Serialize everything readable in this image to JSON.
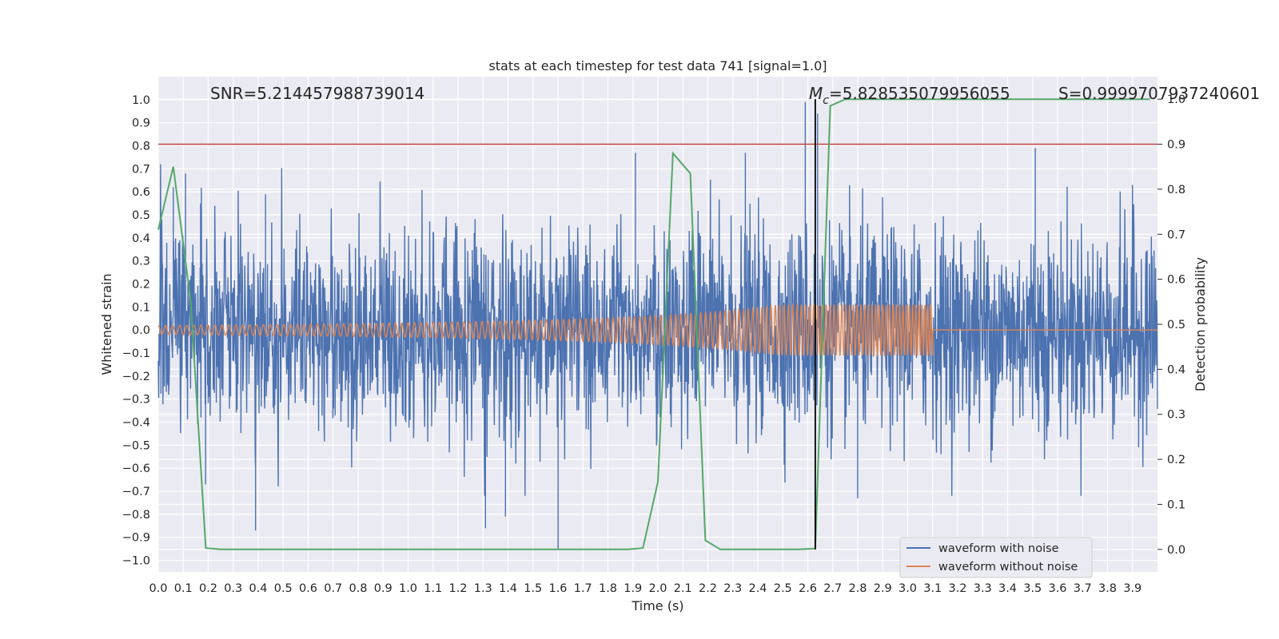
{
  "chart_data": {
    "type": "line",
    "title": "stats at each timestep for test data 741 [signal=1.0]",
    "xlabel": "Time (s)",
    "ylabel": "Whitened strain",
    "y2label": "Detection probability",
    "xlim": [
      0.0,
      4.0
    ],
    "ylim": [
      -1.05,
      1.1
    ],
    "y2lim": [
      -0.05,
      1.05
    ],
    "x_ticks": [
      "0.0",
      "0.1",
      "0.2",
      "0.3",
      "0.4",
      "0.5",
      "0.6",
      "0.7",
      "0.8",
      "0.9",
      "1.0",
      "1.1",
      "1.2",
      "1.3",
      "1.4",
      "1.5",
      "1.6",
      "1.7",
      "1.8",
      "1.9",
      "2.0",
      "2.1",
      "2.2",
      "2.3",
      "2.4",
      "2.5",
      "2.6",
      "2.7",
      "2.8",
      "2.9",
      "3.0",
      "3.1",
      "3.2",
      "3.3",
      "3.4",
      "3.5",
      "3.6",
      "3.7",
      "3.8",
      "3.9"
    ],
    "y_ticks": [
      "1.0",
      "0.9",
      "0.8",
      "0.7",
      "0.6",
      "0.5",
      "0.4",
      "0.3",
      "0.2",
      "0.1",
      "0.0",
      "−0.1",
      "−0.2",
      "−0.3",
      "−0.4",
      "−0.5",
      "−0.6",
      "−0.7",
      "−0.8",
      "−0.9",
      "−1.0"
    ],
    "y2_ticks": [
      "1.0",
      "0.9",
      "0.8",
      "0.7",
      "0.6",
      "0.5",
      "0.4",
      "0.3",
      "0.2",
      "0.1",
      "0.0"
    ],
    "grid": true,
    "legend_position": "lower-right",
    "annotations": {
      "snr": "SNR=5.214457988739014",
      "mc_symbol": "M",
      "mc_subscript": "c",
      "mc_value": "=5.828535079956055",
      "s": "S=0.9999707937240601"
    },
    "threshold_line": {
      "axis": "y2",
      "value": 0.9,
      "color": "#c44e52"
    },
    "vertical_marker": {
      "x": 2.63,
      "color": "#000000"
    },
    "series": [
      {
        "name": "waveform with noise",
        "color": "#4c72b0",
        "description_envelope": {
          "x": [
            0.0,
            4.0
          ],
          "y_range": [
            -0.97,
            0.99
          ]
        },
        "spikes": [
          {
            "x": 0.06,
            "y": 0.62
          },
          {
            "x": 0.11,
            "y": 0.68
          },
          {
            "x": 0.17,
            "y": 0.55
          },
          {
            "x": 0.19,
            "y": -0.67
          },
          {
            "x": 0.39,
            "y": -0.87
          },
          {
            "x": 0.43,
            "y": 0.59
          },
          {
            "x": 1.31,
            "y": -0.86
          },
          {
            "x": 1.39,
            "y": -0.81
          },
          {
            "x": 1.6,
            "y": -0.95
          },
          {
            "x": 1.91,
            "y": 0.77
          },
          {
            "x": 2.35,
            "y": 0.77
          },
          {
            "x": 2.59,
            "y": 0.99
          },
          {
            "x": 2.64,
            "y": 0.94
          },
          {
            "x": 2.8,
            "y": -0.73
          },
          {
            "x": 3.51,
            "y": 0.79
          },
          {
            "x": 3.9,
            "y": 0.63
          }
        ]
      },
      {
        "name": "waveform without noise",
        "color": "#dd8452",
        "chirp": {
          "start": 0.0,
          "end": 3.1,
          "amp_start": 0.02,
          "amp_end": 0.11,
          "after_end": 0.0
        }
      },
      {
        "name": "detection probability",
        "color": "#55a868",
        "axis": "y2",
        "x": [
          0.0,
          0.06,
          0.13,
          0.19,
          0.25,
          1.88,
          1.94,
          2.0,
          2.06,
          2.13,
          2.19,
          2.25,
          2.56,
          2.63,
          2.69,
          2.75,
          3.97
        ],
        "y": [
          0.71,
          0.85,
          0.55,
          0.003,
          0.0,
          0.0,
          0.003,
          0.15,
          0.88,
          0.835,
          0.02,
          0.0,
          0.0,
          0.002,
          0.985,
          1.0,
          1.0
        ]
      }
    ]
  }
}
